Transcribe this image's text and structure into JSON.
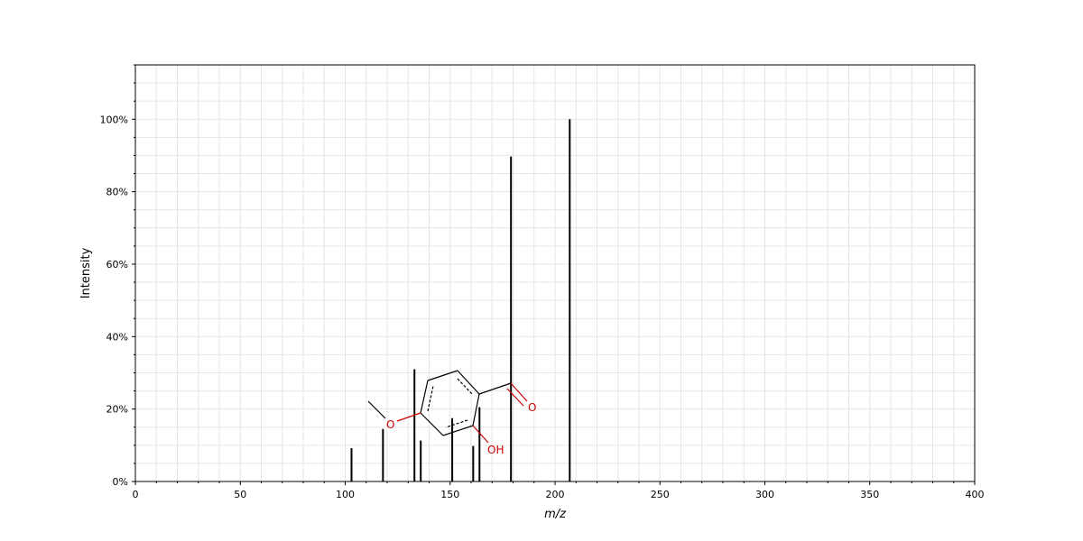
{
  "chart_data": {
    "type": "bar",
    "title": "",
    "xlabel": "m/z",
    "ylabel": "Intensity",
    "xlim": [
      0,
      400
    ],
    "ylim": [
      0,
      115
    ],
    "x_ticks": [
      0,
      50,
      100,
      150,
      200,
      250,
      300,
      350,
      400
    ],
    "y_ticks": [
      0,
      20,
      40,
      60,
      80,
      100
    ],
    "y_tick_labels": [
      "0%",
      "20%",
      "40%",
      "60%",
      "80%",
      "100%"
    ],
    "grid": true,
    "peaks": [
      {
        "mz": 103,
        "intensity": 9.2
      },
      {
        "mz": 118,
        "intensity": 14.5
      },
      {
        "mz": 133,
        "intensity": 31.0
      },
      {
        "mz": 136,
        "intensity": 11.3
      },
      {
        "mz": 151,
        "intensity": 17.5
      },
      {
        "mz": 161,
        "intensity": 9.8
      },
      {
        "mz": 164,
        "intensity": 20.5
      },
      {
        "mz": 179,
        "intensity": 89.7
      },
      {
        "mz": 207,
        "intensity": 100.0
      }
    ],
    "bar_color": "#000000",
    "structure_labels": {
      "methoxy_o": "O",
      "carbonyl_o": "O",
      "hydroxyl": "OH"
    },
    "structure_color": "#cc0000"
  }
}
